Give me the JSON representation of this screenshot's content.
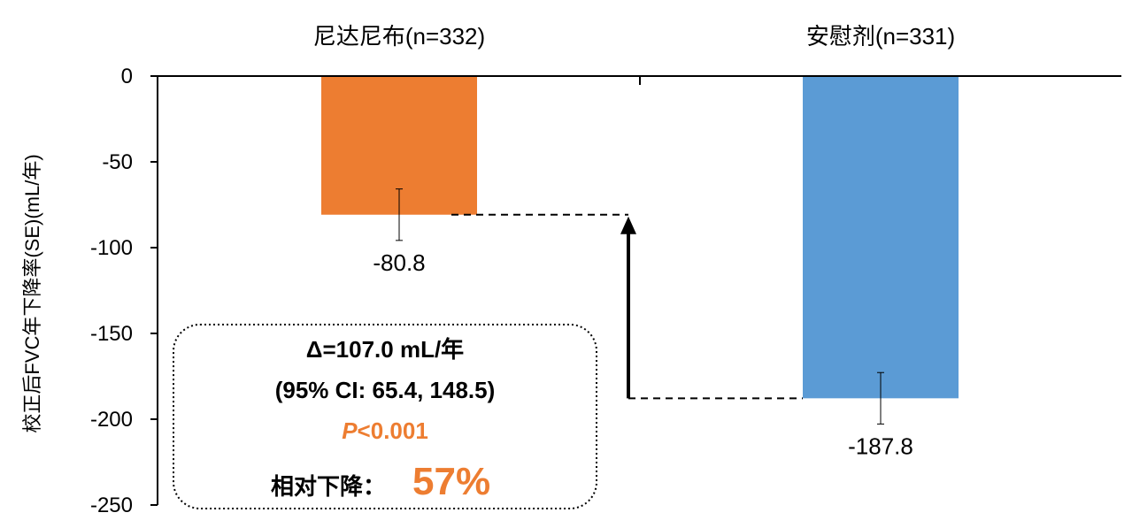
{
  "chart_data": {
    "type": "bar",
    "categories": [
      "尼达尼布(n=332)",
      "安慰剂(n=331)"
    ],
    "values": [
      -80.8,
      -187.8
    ],
    "error_bars": [
      15,
      15
    ],
    "value_labels": [
      "-80.8",
      "-187.8"
    ],
    "colors": [
      "#ED7D31",
      "#5B9BD5"
    ],
    "ylabel": "校正后FVC年下降率(SE)(mL/年)",
    "ylim": [
      -250,
      0
    ],
    "yticks": [
      0,
      -50,
      -100,
      -150,
      -200,
      -250
    ],
    "ytick_labels": [
      "0",
      "-50",
      "-100",
      "-150",
      "-200",
      "-250"
    ],
    "x_axis_position": "top",
    "grid": false,
    "legend": "none",
    "annotation": {
      "delta_line": "Δ=107.0 mL/年",
      "ci_line": "(95% CI: 65.4, 148.5)",
      "p_letter": "P",
      "p_rest": "<0.001",
      "reduction_label": "相对下降：",
      "reduction_value": "57%",
      "accent_color": "#ED7D31"
    }
  }
}
